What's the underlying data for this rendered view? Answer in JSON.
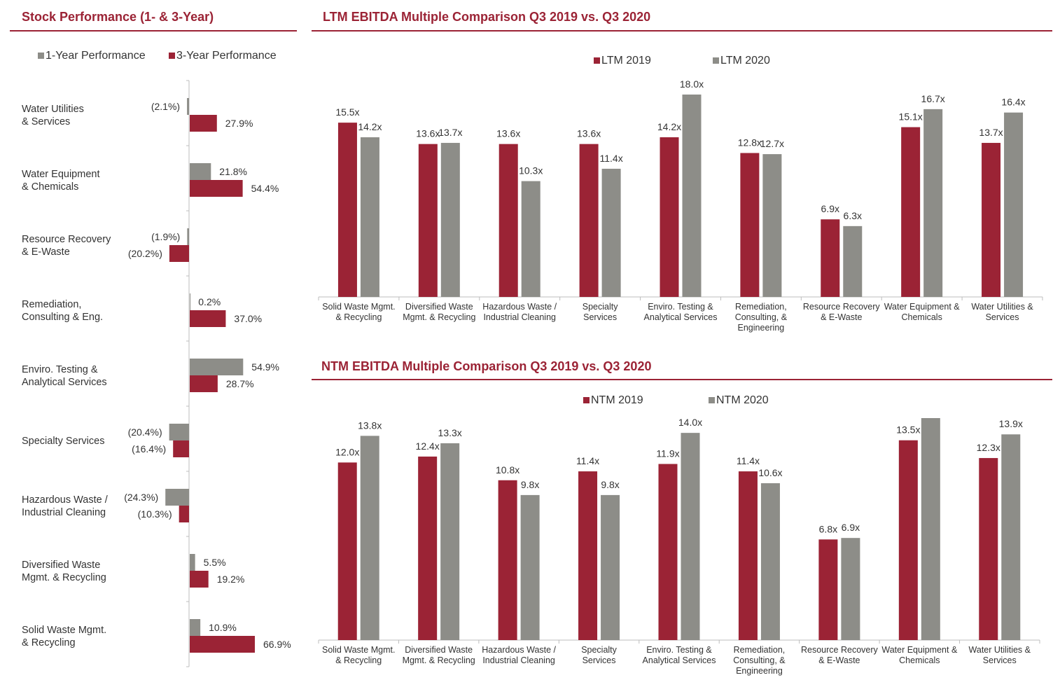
{
  "colors": {
    "accent": "#9b2335",
    "gray": "#8d8d88",
    "axis": "#bdbdbd"
  },
  "left_panel": {
    "title": "Stock Performance (1- & 3-Year)"
  },
  "top_panel": {
    "title": "LTM EBITDA Multiple Comparison Q3 2019 vs. Q3 2020"
  },
  "bottom_panel": {
    "title": "NTM EBITDA Multiple Comparison Q3 2019 vs. Q3 2020"
  },
  "chart_data": [
    {
      "id": "stock",
      "type": "bar",
      "orientation": "horizontal",
      "title": "Stock Performance (1- & 3-Year)",
      "categories": [
        [
          "Water Utilities",
          "& Services"
        ],
        [
          "Water Equipment",
          "& Chemicals"
        ],
        [
          "Resource Recovery",
          "& E-Waste"
        ],
        [
          "Remediation,",
          "Consulting & Eng."
        ],
        [
          "Enviro. Testing &",
          "Analytical Services"
        ],
        [
          "Specialty Services"
        ],
        [
          "Hazardous Waste /",
          "Industrial Cleaning"
        ],
        [
          "Diversified Waste",
          "Mgmt. & Recycling"
        ],
        [
          "Solid Waste Mgmt.",
          "& Recycling"
        ]
      ],
      "series": [
        {
          "name": "1-Year Performance",
          "color": "#8d8d88",
          "values": [
            -2.1,
            21.8,
            -1.9,
            0.2,
            54.9,
            -20.4,
            -24.3,
            5.5,
            10.9
          ],
          "labels": [
            "(2.1%)",
            "21.8%",
            "(1.9%)",
            "0.2%",
            "54.9%",
            "(20.4%)",
            "(24.3%)",
            "5.5%",
            "10.9%"
          ]
        },
        {
          "name": "3-Year Performance",
          "color": "#9b2335",
          "values": [
            27.9,
            54.4,
            -20.2,
            37.0,
            28.7,
            -16.4,
            -10.3,
            19.2,
            66.9
          ],
          "labels": [
            "27.9%",
            "54.4%",
            "(20.2%)",
            "37.0%",
            "28.7%",
            "(16.4%)",
            "(10.3%)",
            "19.2%",
            "66.9%"
          ]
        }
      ],
      "legend": "top",
      "grid": false
    },
    {
      "id": "ltm",
      "type": "bar",
      "title": "LTM EBITDA Multiple Comparison Q3 2019 vs. Q3 2020",
      "categories": [
        [
          "Solid Waste Mgmt.",
          "& Recycling"
        ],
        [
          "Diversified Waste",
          "Mgmt. & Recycling"
        ],
        [
          "Hazardous Waste /",
          "Industrial Cleaning"
        ],
        [
          "Specialty",
          "Services"
        ],
        [
          "Enviro. Testing &",
          "Analytical Services"
        ],
        [
          "Remediation,",
          "Consulting, &",
          "Engineering"
        ],
        [
          "Resource Recovery",
          "& E-Waste"
        ],
        [
          "Water Equipment &",
          "Chemicals"
        ],
        [
          "Water Utilities &",
          "Services"
        ]
      ],
      "series": [
        {
          "name": "LTM 2019",
          "color": "#9b2335",
          "values": [
            15.5,
            13.6,
            13.6,
            13.6,
            14.2,
            12.8,
            6.9,
            15.1,
            13.7
          ],
          "labels": [
            "15.5x",
            "13.6x",
            "13.6x",
            "13.6x",
            "14.2x",
            "12.8x",
            "6.9x",
            "15.1x",
            "13.7x"
          ]
        },
        {
          "name": "LTM 2020",
          "color": "#8d8d88",
          "values": [
            14.2,
            13.7,
            10.3,
            11.4,
            18.0,
            12.7,
            6.3,
            16.7,
            16.4
          ],
          "labels": [
            "14.2x",
            "13.7x",
            "10.3x",
            "11.4x",
            "18.0x",
            "12.7x",
            "6.3x",
            "16.7x",
            "16.4x"
          ]
        }
      ],
      "ylim": [
        0,
        18
      ],
      "legend": "top",
      "grid": false
    },
    {
      "id": "ntm",
      "type": "bar",
      "title": "NTM EBITDA Multiple Comparison Q3 2019 vs. Q3 2020",
      "categories": [
        [
          "Solid Waste Mgmt.",
          "& Recycling"
        ],
        [
          "Diversified Waste",
          "Mgmt. & Recycling"
        ],
        [
          "Hazardous Waste /",
          "Industrial Cleaning"
        ],
        [
          "Specialty",
          "Services"
        ],
        [
          "Enviro. Testing &",
          "Analytical Services"
        ],
        [
          "Remediation,",
          "Consulting, &",
          "Engineering"
        ],
        [
          "Resource Recovery",
          "& E-Waste"
        ],
        [
          "Water Equipment &",
          "Chemicals"
        ],
        [
          "Water Utilities &",
          "Services"
        ]
      ],
      "series": [
        {
          "name": "NTM 2019",
          "color": "#9b2335",
          "values": [
            12.0,
            12.4,
            10.8,
            11.4,
            11.9,
            11.4,
            6.8,
            13.5,
            12.3
          ],
          "labels": [
            "12.0x",
            "12.4x",
            "10.8x",
            "11.4x",
            "11.9x",
            "11.4x",
            "6.8x",
            "13.5x",
            "12.3x"
          ]
        },
        {
          "name": "NTM 2020",
          "color": "#8d8d88",
          "values": [
            13.8,
            13.3,
            9.8,
            9.8,
            14.0,
            10.6,
            6.9,
            15.0,
            13.9
          ],
          "labels": [
            "13.8x",
            "13.3x",
            "9.8x",
            "9.8x",
            "14.0x",
            "10.6x",
            "6.9x",
            "",
            "13.9x"
          ]
        }
      ],
      "ylim": [
        0,
        15
      ],
      "legend": "top",
      "grid": false
    }
  ]
}
